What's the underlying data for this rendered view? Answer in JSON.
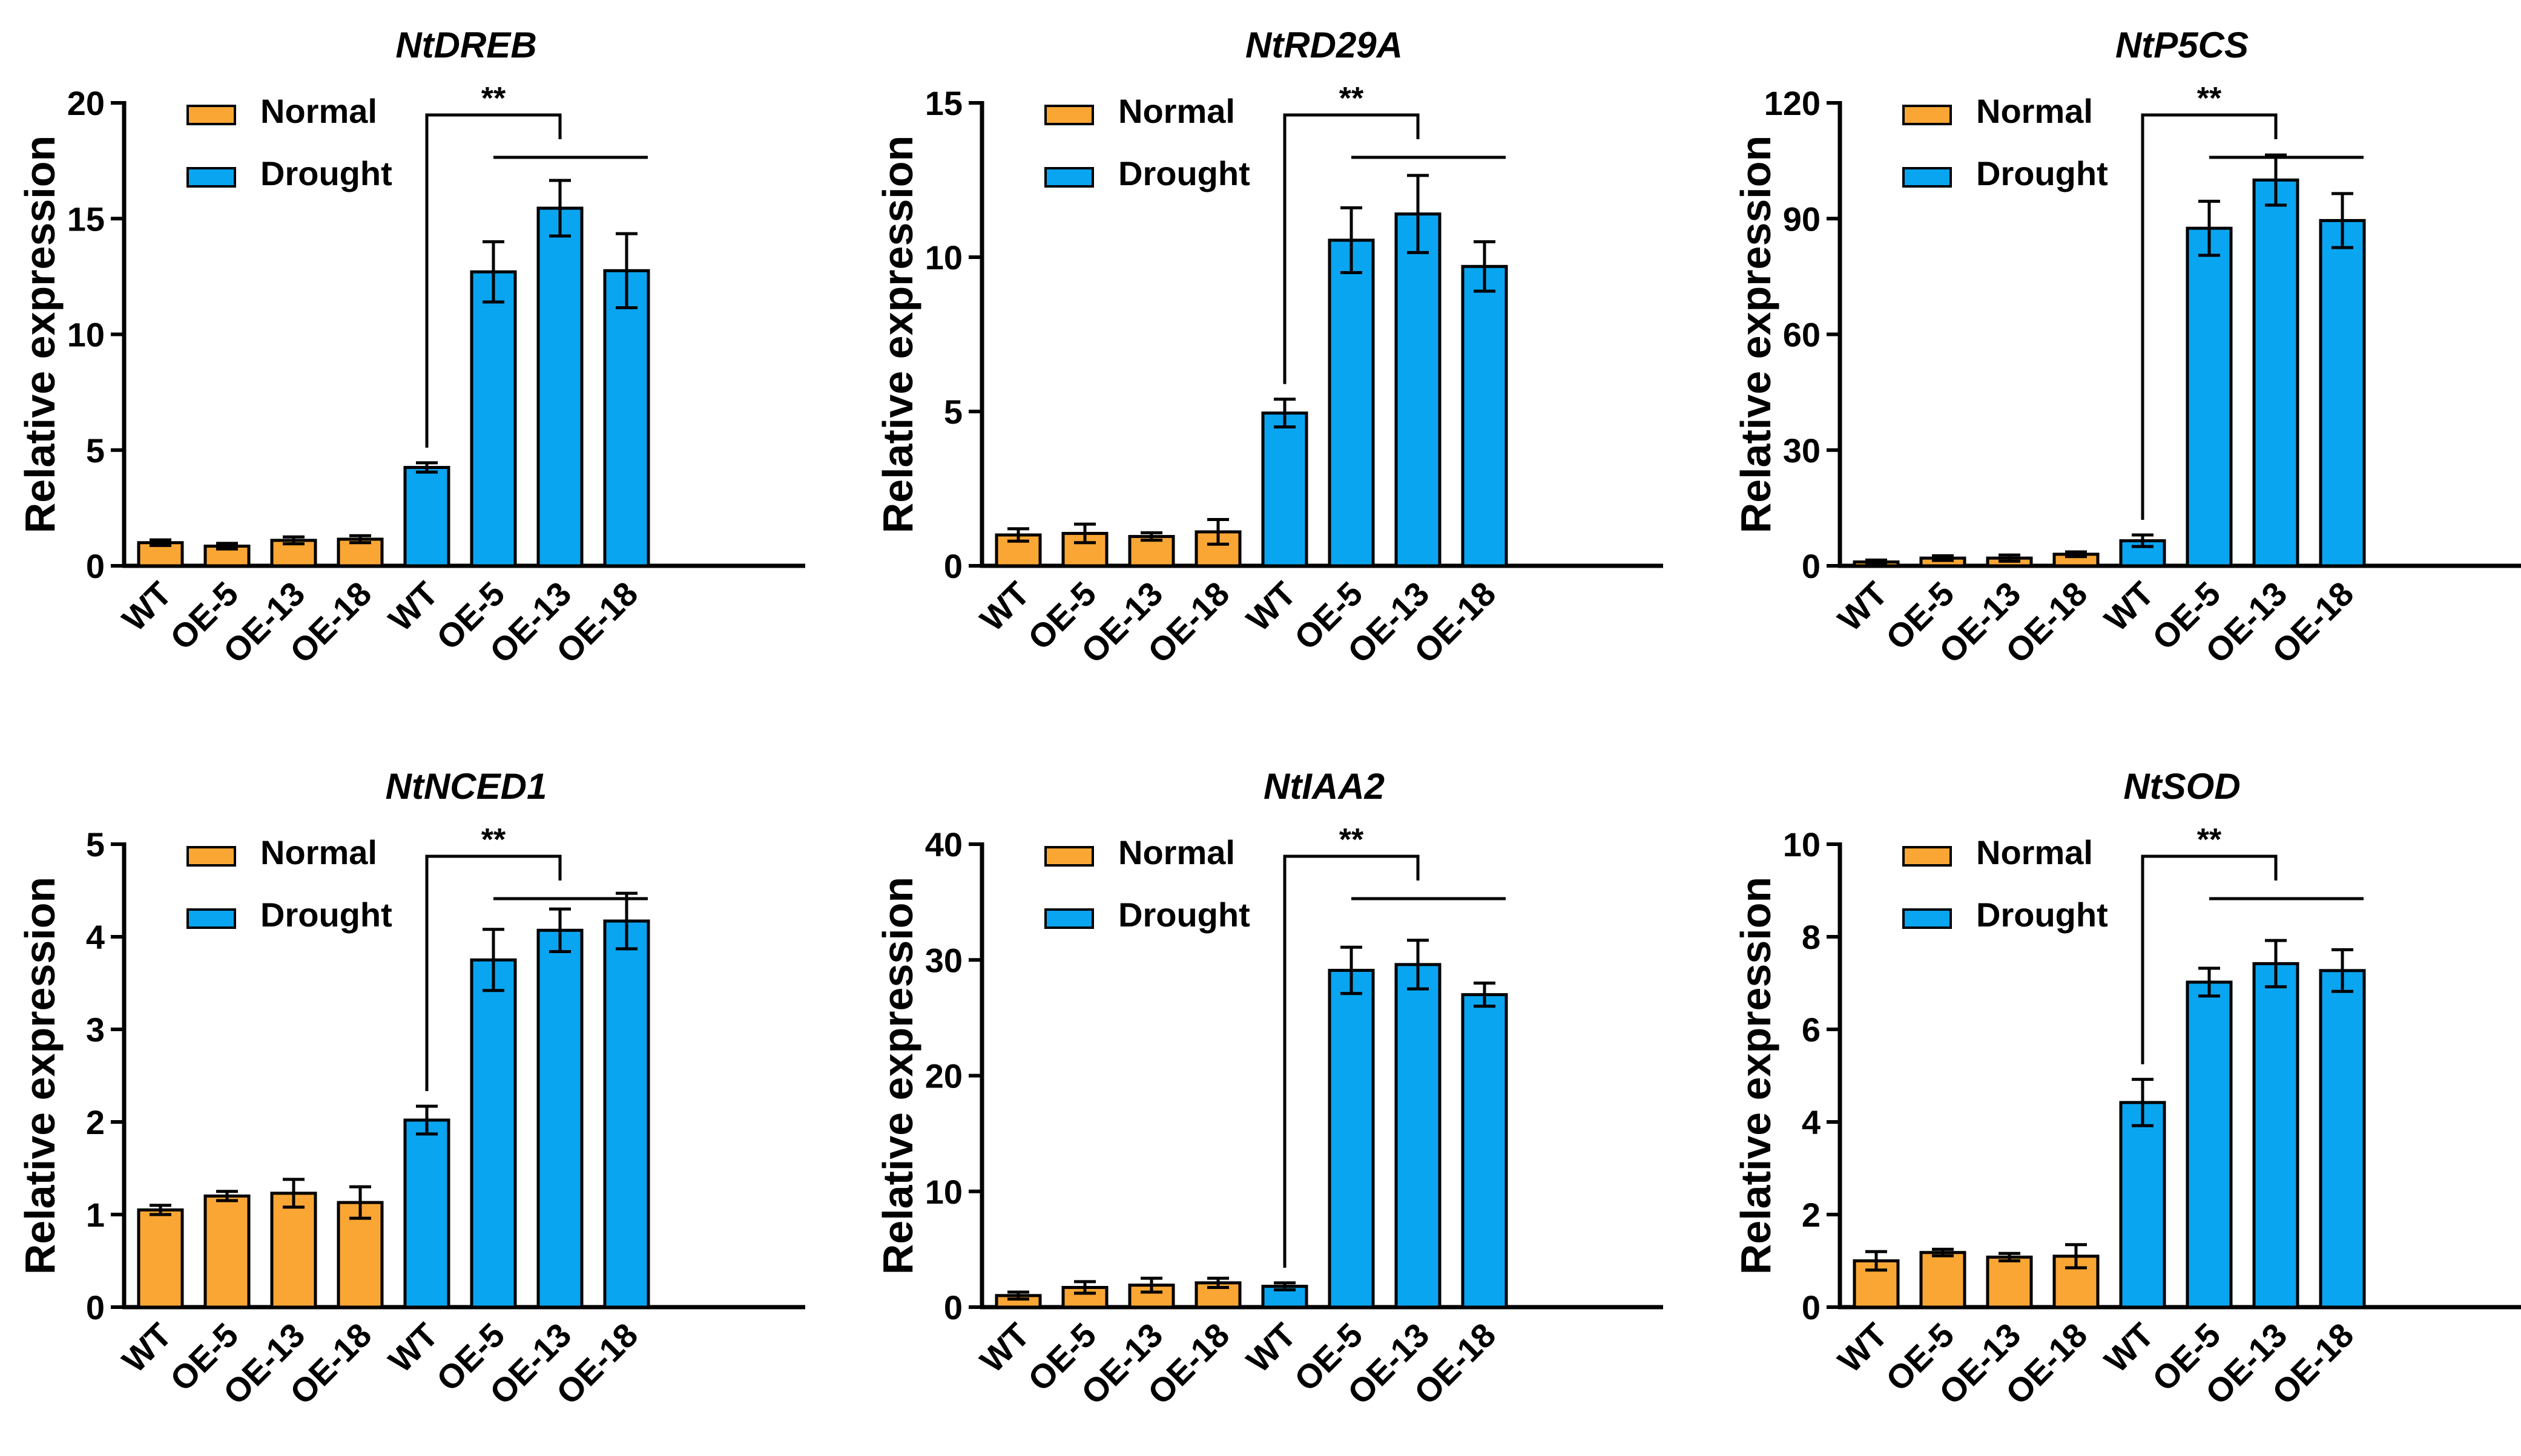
{
  "colors": {
    "normal": "#FAA635",
    "drought": "#0AA5F0",
    "axis": "#000000"
  },
  "legend": {
    "normal": "Normal",
    "drought": "Drought"
  },
  "chart_data": [
    {
      "type": "bar",
      "title": "NtDREB",
      "ylabel": "Relative expression",
      "xlabel": "",
      "ylim": [
        0,
        20
      ],
      "yticks": [
        "0",
        "5",
        "10",
        "15",
        "20"
      ],
      "categories": [
        "WT",
        "OE-5",
        "OE-13",
        "OE-18"
      ],
      "series": [
        {
          "name": "Normal",
          "values": [
            1.0,
            0.85,
            1.1,
            1.15
          ],
          "errors": [
            0.12,
            0.12,
            0.15,
            0.15
          ]
        },
        {
          "name": "Drought",
          "values": [
            4.25,
            12.7,
            15.45,
            12.75
          ],
          "errors": [
            0.2,
            1.3,
            1.2,
            1.6
          ]
        }
      ],
      "significance": "**",
      "legend_position": "top-left"
    },
    {
      "type": "bar",
      "title": "NtRD29A",
      "ylabel": "Relative expression",
      "xlabel": "",
      "ylim": [
        0,
        15
      ],
      "yticks": [
        "0",
        "5",
        "10",
        "15"
      ],
      "categories": [
        "WT",
        "OE-5",
        "OE-13",
        "OE-18"
      ],
      "series": [
        {
          "name": "Normal",
          "values": [
            1.0,
            1.05,
            0.95,
            1.1
          ],
          "errors": [
            0.2,
            0.3,
            0.12,
            0.4
          ]
        },
        {
          "name": "Drought",
          "values": [
            4.95,
            10.55,
            11.4,
            9.7
          ],
          "errors": [
            0.45,
            1.05,
            1.25,
            0.8
          ]
        }
      ],
      "significance": "**",
      "legend_position": "top-left"
    },
    {
      "type": "bar",
      "title": "NtP5CS",
      "ylabel": "Relative expression",
      "xlabel": "",
      "ylim": [
        0,
        120
      ],
      "yticks": [
        "0",
        "30",
        "60",
        "90",
        "120"
      ],
      "categories": [
        "WT",
        "OE-5",
        "OE-13",
        "OE-18"
      ],
      "series": [
        {
          "name": "Normal",
          "values": [
            1.0,
            2.0,
            2.0,
            3.0
          ],
          "errors": [
            0.5,
            0.6,
            0.8,
            0.6
          ]
        },
        {
          "name": "Drought",
          "values": [
            6.5,
            87.5,
            100,
            89.5
          ],
          "errors": [
            1.5,
            7.0,
            6.5,
            7.0
          ]
        }
      ],
      "significance": "**",
      "legend_position": "top-left"
    },
    {
      "type": "bar",
      "title": "NtNCED1",
      "ylabel": "Relative expression",
      "xlabel": "",
      "ylim": [
        0,
        5
      ],
      "yticks": [
        "0",
        "1",
        "2",
        "3",
        "4",
        "5"
      ],
      "categories": [
        "WT",
        "OE-5",
        "OE-13",
        "OE-18"
      ],
      "series": [
        {
          "name": "Normal",
          "values": [
            1.05,
            1.2,
            1.23,
            1.13
          ],
          "errors": [
            0.05,
            0.05,
            0.15,
            0.17
          ]
        },
        {
          "name": "Drought",
          "values": [
            2.02,
            3.75,
            4.07,
            4.17
          ],
          "errors": [
            0.15,
            0.33,
            0.23,
            0.3
          ]
        }
      ],
      "significance": "**",
      "legend_position": "top-left"
    },
    {
      "type": "bar",
      "title": "NtIAA2",
      "ylabel": "Relative expression",
      "xlabel": "",
      "ylim": [
        0,
        40
      ],
      "yticks": [
        "0",
        "10",
        "20",
        "30",
        "40"
      ],
      "categories": [
        "WT",
        "OE-5",
        "OE-13",
        "OE-18"
      ],
      "series": [
        {
          "name": "Normal",
          "values": [
            1.0,
            1.7,
            1.9,
            2.1
          ],
          "errors": [
            0.3,
            0.5,
            0.6,
            0.4
          ]
        },
        {
          "name": "Drought",
          "values": [
            1.8,
            29.1,
            29.6,
            27.0
          ],
          "errors": [
            0.3,
            2.0,
            2.1,
            1.0
          ]
        }
      ],
      "significance": "**",
      "legend_position": "top-left"
    },
    {
      "type": "bar",
      "title": "NtSOD",
      "ylabel": "Relative expression",
      "xlabel": "",
      "ylim": [
        0,
        10
      ],
      "yticks": [
        "0",
        "2",
        "4",
        "6",
        "8",
        "10"
      ],
      "categories": [
        "WT",
        "OE-5",
        "OE-13",
        "OE-18"
      ],
      "series": [
        {
          "name": "Normal",
          "values": [
            1.0,
            1.18,
            1.08,
            1.1
          ],
          "errors": [
            0.2,
            0.07,
            0.08,
            0.25
          ]
        },
        {
          "name": "Drought",
          "values": [
            4.42,
            7.02,
            7.42,
            7.27
          ],
          "errors": [
            0.5,
            0.3,
            0.5,
            0.45
          ]
        }
      ],
      "significance": "**",
      "legend_position": "top-left"
    }
  ]
}
